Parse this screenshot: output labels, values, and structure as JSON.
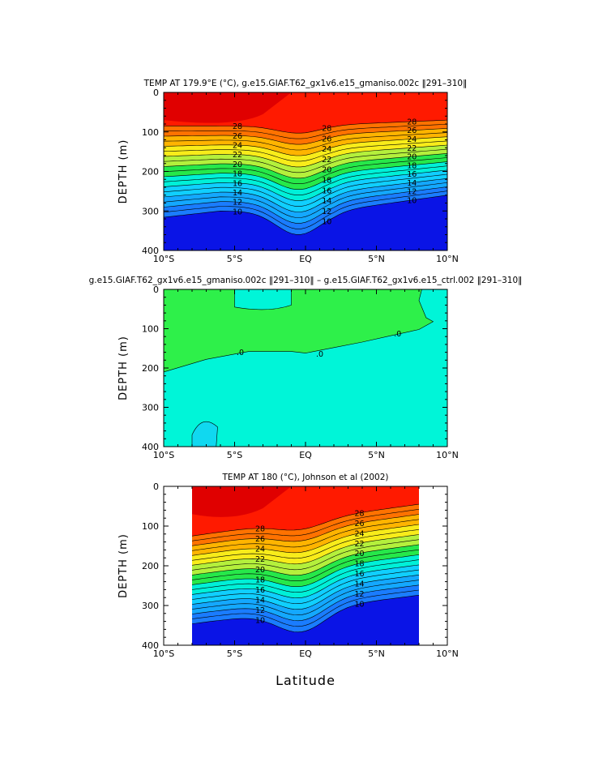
{
  "chart_data": [
    {
      "type": "contour",
      "title": "TEMP AT 179.9°E (°C), g.e15.GIAF.T62_gx1v6.e15_gmaniso.002c ‖291–310‖",
      "ylabel": "DEPTH (m)",
      "xlabel": "",
      "x_range": [
        -10,
        10
      ],
      "y_range": [
        400,
        0
      ],
      "x_ticks": [
        "10°S",
        "5°S",
        "EQ",
        "5°N",
        "10°N"
      ],
      "y_ticks": [
        "0",
        "100",
        "200",
        "300",
        "400"
      ],
      "data_x_range": [
        -10,
        10
      ],
      "contour_levels": [
        10,
        12,
        14,
        16,
        18,
        20,
        22,
        24,
        26,
        28
      ],
      "contour_labels": [
        "28",
        "26",
        "24",
        "22",
        "20",
        "18",
        "16",
        "14",
        "12",
        "10",
        "28",
        "26",
        "24",
        "22",
        "20",
        "18",
        "16",
        "14",
        "12",
        "10",
        "28",
        "26",
        "24",
        "22",
        "20",
        "18",
        "16",
        "14",
        "12",
        "10"
      ]
    },
    {
      "type": "contour",
      "title": "g.e15.GIAF.T62_gx1v6.e15_gmaniso.002c ‖291–310‖ – g.e15.GIAF.T62_gx1v6.e15_ctrl.002 ‖291–310‖",
      "ylabel": "DEPTH (m)",
      "xlabel": "",
      "x_range": [
        -10,
        10
      ],
      "y_range": [
        400,
        0
      ],
      "x_ticks": [
        "10°S",
        "5°S",
        "EQ",
        "5°N",
        "10°N"
      ],
      "y_ticks": [
        "0",
        "100",
        "200",
        "300",
        "400"
      ],
      "data_x_range": [
        -10,
        10
      ],
      "contour_levels": [
        0
      ],
      "contour_labels": [
        ".0",
        ".0",
        ".0"
      ]
    },
    {
      "type": "contour",
      "title": "TEMP AT 180 (°C), Johnson et al (2002)",
      "ylabel": "DEPTH (m)",
      "xlabel": "Latitude",
      "x_range": [
        -10,
        10
      ],
      "y_range": [
        400,
        0
      ],
      "x_ticks": [
        "10°S",
        "5°S",
        "EQ",
        "5°N",
        "10°N"
      ],
      "y_ticks": [
        "0",
        "100",
        "200",
        "300",
        "400"
      ],
      "data_x_range": [
        -8,
        8
      ],
      "contour_levels": [
        10,
        12,
        14,
        16,
        18,
        20,
        22,
        24,
        26,
        28
      ],
      "contour_labels": [
        "28",
        "26",
        "24",
        "22",
        "20",
        "18",
        "16",
        "14",
        "12",
        "10",
        "28",
        "26",
        "24",
        "22",
        "20",
        "18",
        "16",
        "14",
        "12",
        "10"
      ]
    }
  ]
}
